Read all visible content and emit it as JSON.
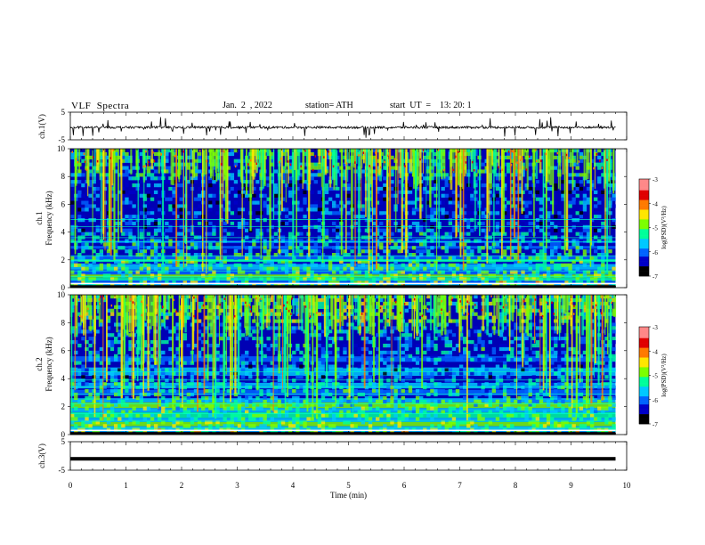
{
  "header": {
    "title": "VLF  Spectra",
    "date": "Jan.  2  , 2022",
    "station": "station= ATH",
    "start": "start  UT  =    13: 20: 1"
  },
  "chart_data": [
    {
      "type": "line",
      "ylabel": "ch.1(V)",
      "ylim": [
        -5,
        5
      ],
      "yticks": [
        "5",
        "-5"
      ],
      "x_range_min": [
        0,
        9.8
      ],
      "style": "noisy waveform with sharp spikes"
    },
    {
      "type": "heatmap",
      "ylabel": "ch.1\nFrequency  (kHz)",
      "ylim": [
        0,
        10
      ],
      "yticks": [
        "0",
        "2",
        "4",
        "6",
        "8",
        "10"
      ],
      "x_range_min": [
        0,
        9.8
      ],
      "colorbar": {
        "label": "log(PSD)(V²/Hz)",
        "range": [
          -7,
          -3
        ],
        "ticks": [
          "-3",
          "-4",
          "-5",
          "-6",
          "-7"
        ]
      }
    },
    {
      "type": "heatmap",
      "ylabel": "ch.2\nFrequency  (kHz)",
      "ylim": [
        0,
        10
      ],
      "yticks": [
        "0",
        "2",
        "4",
        "6",
        "8",
        "10"
      ],
      "x_range_min": [
        0,
        9.8
      ],
      "colorbar": {
        "label": "log(PSD)(V²/Hz)",
        "range": [
          -7,
          -3
        ],
        "ticks": [
          "-3",
          "-4",
          "-5",
          "-6",
          "-7"
        ]
      }
    },
    {
      "type": "line",
      "ylabel": "ch.3(V)",
      "ylim": [
        -5,
        5
      ],
      "yticks": [
        "5",
        "-5"
      ],
      "x_range_min": [
        0,
        9.8
      ],
      "style": "flat thick trace near -1 V"
    }
  ],
  "xaxis": {
    "label": "Time  (min)",
    "ticks": [
      "0",
      "1",
      "2",
      "3",
      "4",
      "5",
      "6",
      "7",
      "8",
      "9",
      "10"
    ],
    "range": [
      0,
      10
    ]
  },
  "colors": {
    "colormap": [
      "#000000",
      "#0000c8",
      "#0064ff",
      "#00c8ff",
      "#00ff9a",
      "#7cff00",
      "#ffe600",
      "#ff7a00",
      "#e00000",
      "#ff8888",
      "#ffffff"
    ]
  }
}
